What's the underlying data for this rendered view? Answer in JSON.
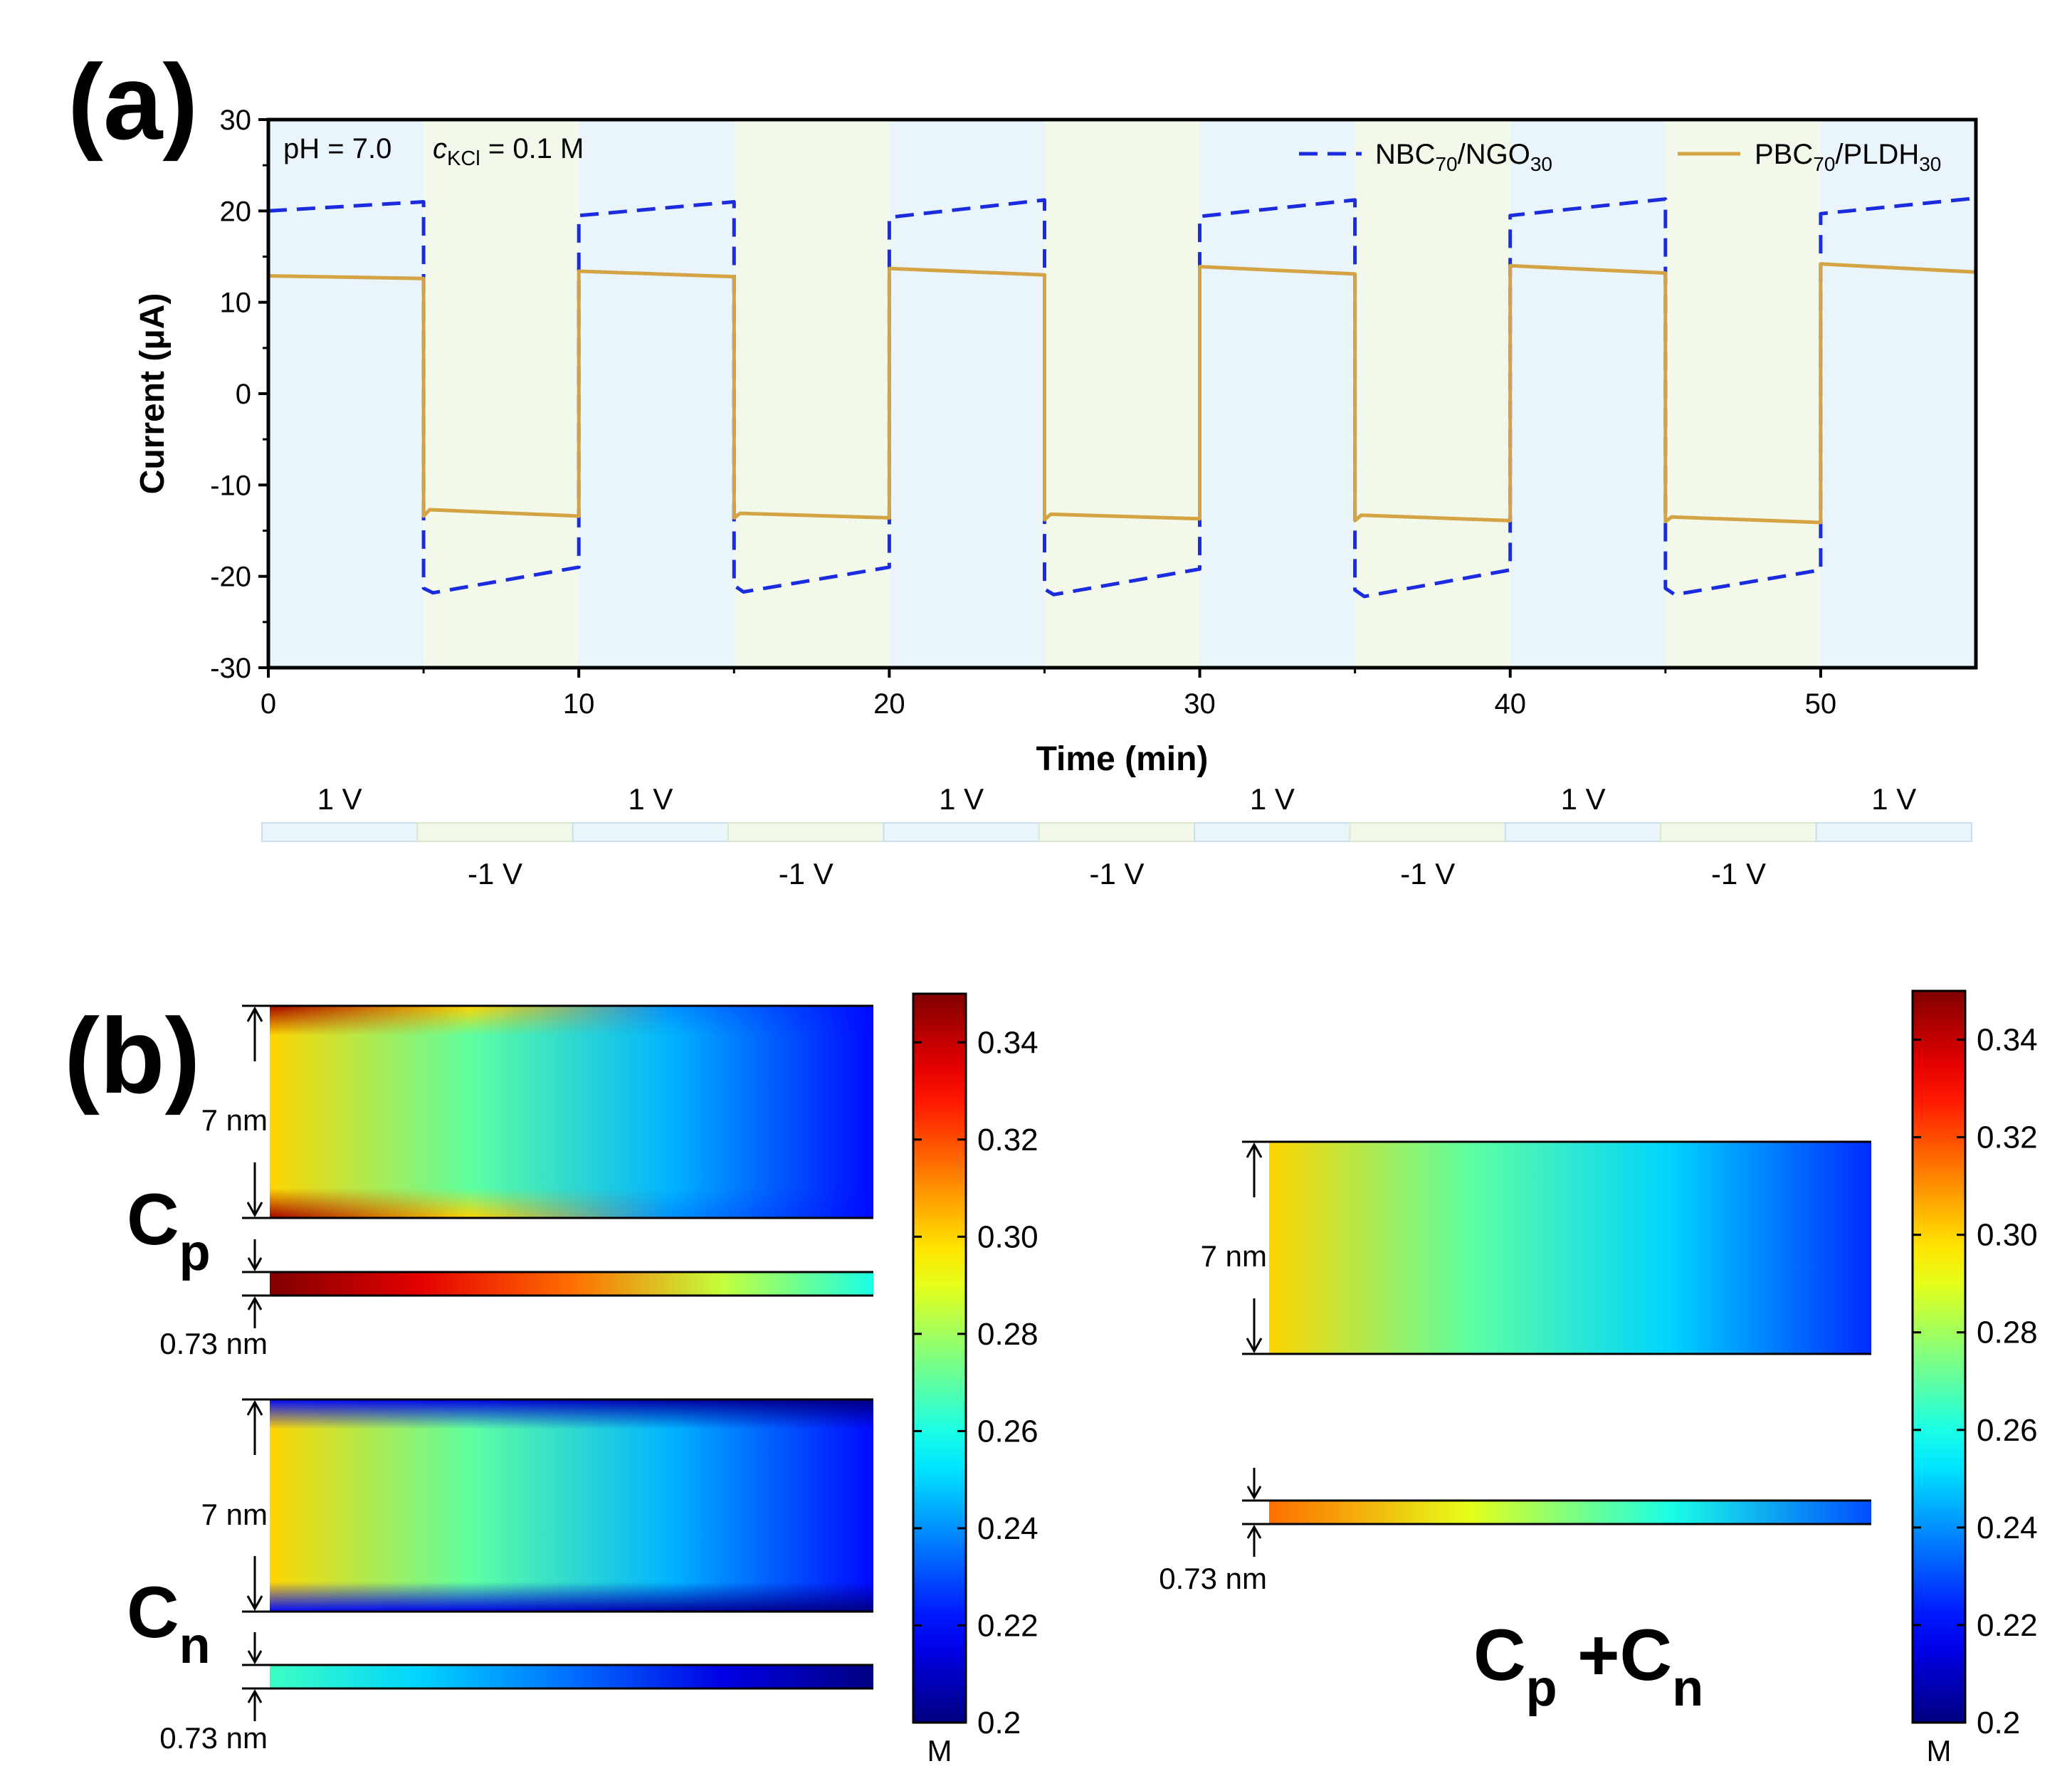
{
  "panel_a": {
    "label": "(a)",
    "condition_ph": "pH = 7.0",
    "condition_c_symbol": "c",
    "condition_c_sub": "KCl",
    "condition_c_value": " = 0.1 M",
    "voltage_pos_label": "1 V",
    "voltage_neg_label": "-1 V"
  },
  "panel_b": {
    "label": "(b)",
    "thick_label": "7 nm",
    "thin_label": "0.73 nm",
    "cp_main": "C",
    "cp_sub": "p",
    "cn_main": "C",
    "cn_sub": "n",
    "sum_cp_main": "C",
    "sum_cp_sub": "p",
    "sum_plus": " +C",
    "sum_cn_sub": "n",
    "colorbar_unit": "M",
    "colorbar_ticks": [
      "0.2",
      "0.22",
      "0.24",
      "0.26",
      "0.28",
      "0.30",
      "0.32",
      "0.34"
    ],
    "colorbar_range": [
      0.2,
      0.35
    ]
  },
  "chart_data": [
    {
      "type": "line",
      "xlabel": "Time (min)",
      "ylabel": "Current (μA)",
      "xlim": [
        0,
        55
      ],
      "ylim": [
        -30,
        30
      ],
      "xticks": [
        0,
        10,
        20,
        30,
        40,
        50
      ],
      "yticks": [
        30,
        20,
        10,
        0,
        -10,
        -20,
        -30
      ],
      "grid": false,
      "legend_position": "top-right",
      "background_bands": {
        "period_min": 5,
        "positive_voltage_color": "#e9f4fb",
        "negative_voltage_color": "#f3f9ea"
      },
      "series": [
        {
          "name_main": "NBC",
          "name_sub1": "70",
          "name_mid": "/NGO",
          "name_sub2": "30",
          "color": "#1a2be0",
          "style": "dashed",
          "x": [
            0,
            5,
            5,
            5.3,
            10,
            10,
            15,
            15,
            15.3,
            20,
            20,
            25,
            25,
            25.3,
            30,
            30,
            35,
            35,
            35.3,
            40,
            40,
            45,
            45,
            45.3,
            50,
            50,
            55
          ],
          "y": [
            20,
            21,
            -21.3,
            -21.8,
            -19,
            19.5,
            21,
            -21,
            -21.7,
            -19,
            19.3,
            21.2,
            -21.4,
            -22,
            -19.2,
            19.4,
            21.2,
            -21.5,
            -22.2,
            -19.3,
            19.5,
            21.3,
            -21.3,
            -22,
            -19.3,
            19.7,
            21.4
          ]
        },
        {
          "name_main": "PBC",
          "name_sub1": "70",
          "name_mid": "/PLDH",
          "name_sub2": "30",
          "color": "#d4a444",
          "style": "solid",
          "x": [
            0,
            5,
            5,
            5.2,
            10,
            10,
            15,
            15,
            15.2,
            20,
            20,
            25,
            25,
            25.2,
            30,
            30,
            35,
            35,
            35.2,
            40,
            40,
            45,
            45,
            45.2,
            50,
            50,
            55
          ],
          "y": [
            12.9,
            12.6,
            -13.4,
            -12.7,
            -13.4,
            13.4,
            12.8,
            -13.6,
            -13.1,
            -13.6,
            13.7,
            13,
            -13.8,
            -13.2,
            -13.7,
            13.9,
            13.1,
            -13.9,
            -13.3,
            -13.9,
            14,
            13.2,
            -14,
            -13.5,
            -14.1,
            14.2,
            13.3
          ]
        }
      ]
    },
    {
      "type": "heatmap",
      "name": "Cp",
      "color_range": [
        0.2,
        0.35
      ],
      "channels": [
        {
          "thickness_label": "7 nm",
          "center_values": [
            0.3,
            0.27,
            0.245,
            0.22
          ],
          "wall_values": [
            0.345,
            0.3,
            0.24,
            0.22
          ]
        },
        {
          "thickness_label": "0.73 nm",
          "values": [
            0.35,
            0.335,
            0.315,
            0.285,
            0.26
          ]
        }
      ]
    },
    {
      "type": "heatmap",
      "name": "Cn",
      "color_range": [
        0.2,
        0.35
      ],
      "channels": [
        {
          "thickness_label": "7 nm",
          "center_values": [
            0.3,
            0.27,
            0.245,
            0.22
          ],
          "wall_values": [
            0.22,
            0.215,
            0.205,
            0.2
          ]
        },
        {
          "thickness_label": "0.73 nm",
          "values": [
            0.265,
            0.25,
            0.235,
            0.215,
            0.2
          ]
        }
      ]
    },
    {
      "type": "heatmap",
      "name": "Cp +Cn",
      "color_range": [
        0.2,
        0.35
      ],
      "channels": [
        {
          "thickness_label": "7 nm",
          "values": [
            0.3,
            0.27,
            0.25,
            0.225
          ]
        },
        {
          "thickness_label": "0.73 nm",
          "values": [
            0.315,
            0.29,
            0.26,
            0.23
          ]
        }
      ]
    }
  ]
}
